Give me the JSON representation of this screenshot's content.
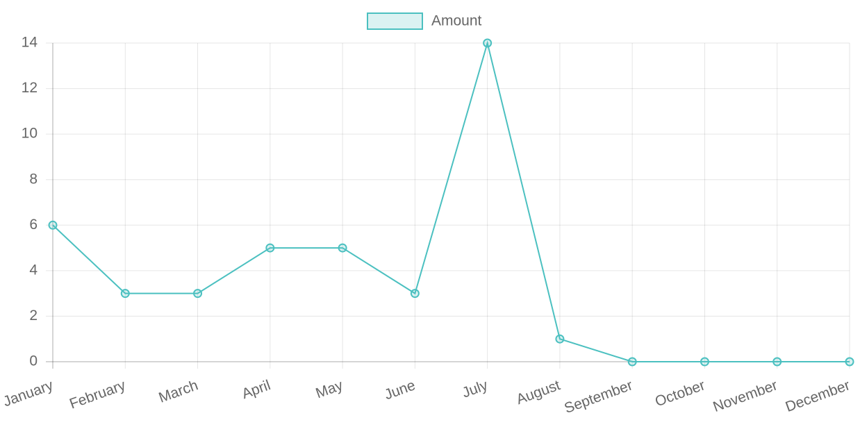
{
  "chart_data": {
    "type": "line",
    "categories": [
      "January",
      "February",
      "March",
      "April",
      "May",
      "June",
      "July",
      "August",
      "September",
      "October",
      "November",
      "December"
    ],
    "series": [
      {
        "name": "Amount",
        "color": "#4bc0c0",
        "values": [
          6,
          3,
          3,
          5,
          5,
          3,
          14,
          1,
          0,
          0,
          0,
          0
        ]
      }
    ],
    "ylim": [
      0,
      14
    ],
    "yticks": [
      0,
      2,
      4,
      6,
      8,
      10,
      12,
      14
    ],
    "grid": true,
    "legend": "top"
  }
}
